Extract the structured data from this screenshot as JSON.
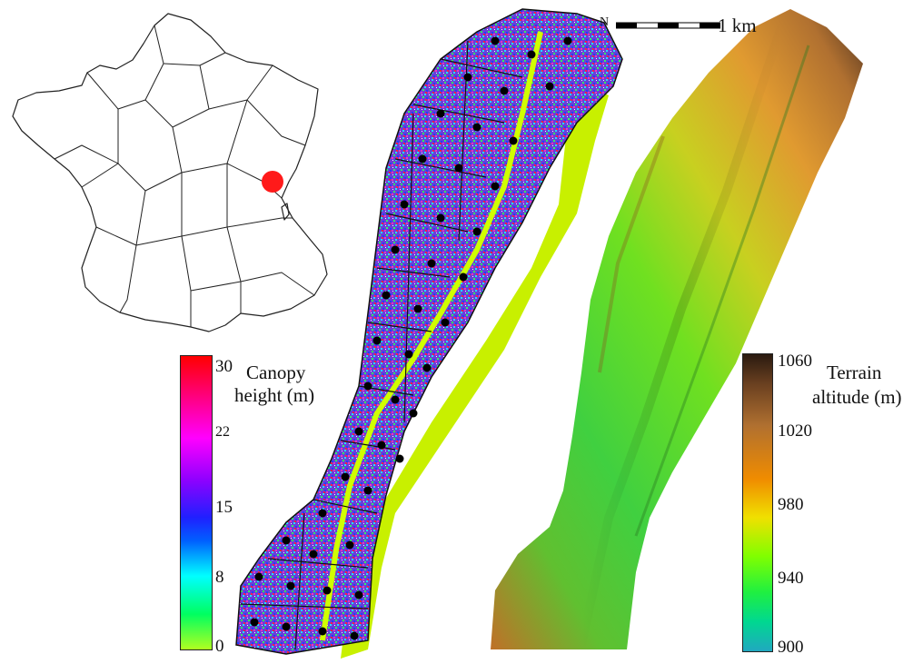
{
  "scale_bar": {
    "label": "1 km",
    "north_symbol": "N"
  },
  "canopy_legend": {
    "title_line1": "Canopy",
    "title_line2": "height (m)",
    "ticks": [
      "30",
      "22",
      "15",
      "8",
      "0"
    ],
    "tick_values": [
      30,
      22,
      15,
      8,
      0
    ],
    "range": [
      0,
      30
    ],
    "colors": [
      "#ff0000",
      "#ff00ff",
      "#6a00ff",
      "#0030ff",
      "#00ffff",
      "#00ff40",
      "#a0ff20"
    ]
  },
  "terrain_legend": {
    "title_line1": "Terrain",
    "title_line2": "altitude (m)",
    "ticks": [
      "1060",
      "1020",
      "980",
      "940",
      "900"
    ],
    "tick_values": [
      1060,
      1020,
      980,
      940,
      900
    ],
    "range": [
      900,
      1060
    ],
    "colors": [
      "#2a1a10",
      "#8b5a2b",
      "#d98a2a",
      "#f08c00",
      "#f0f000",
      "#40ff00",
      "#00e070",
      "#20b0b0"
    ]
  },
  "inset_map": {
    "marker_color": "#ff1a1a",
    "region": "France"
  }
}
